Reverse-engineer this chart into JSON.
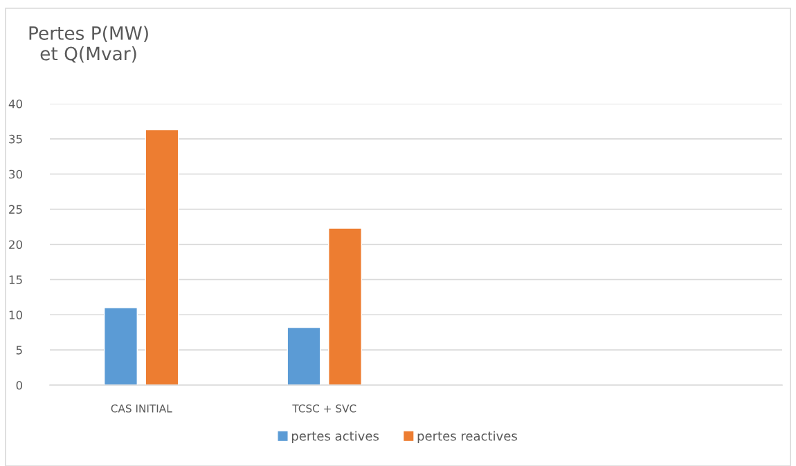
{
  "chart_data": {
    "type": "bar",
    "ylabel": "Pertes P(MW)\net Q(Mvar)",
    "categories": [
      "CAS INITIAL",
      "TCSC + SVC",
      null,
      null
    ],
    "series": [
      {
        "name": "pertes actives",
        "color": "#5b9bd5",
        "values": [
          11,
          8.2,
          null,
          null
        ]
      },
      {
        "name": "pertes reactives",
        "color": "#ed7d31",
        "values": [
          36.3,
          22.3,
          null,
          null
        ]
      }
    ],
    "ylim": [
      0,
      40
    ],
    "yticks": [
      0,
      5,
      10,
      15,
      20,
      25,
      30,
      35,
      40
    ],
    "grid": "y",
    "legend": "bottom"
  }
}
